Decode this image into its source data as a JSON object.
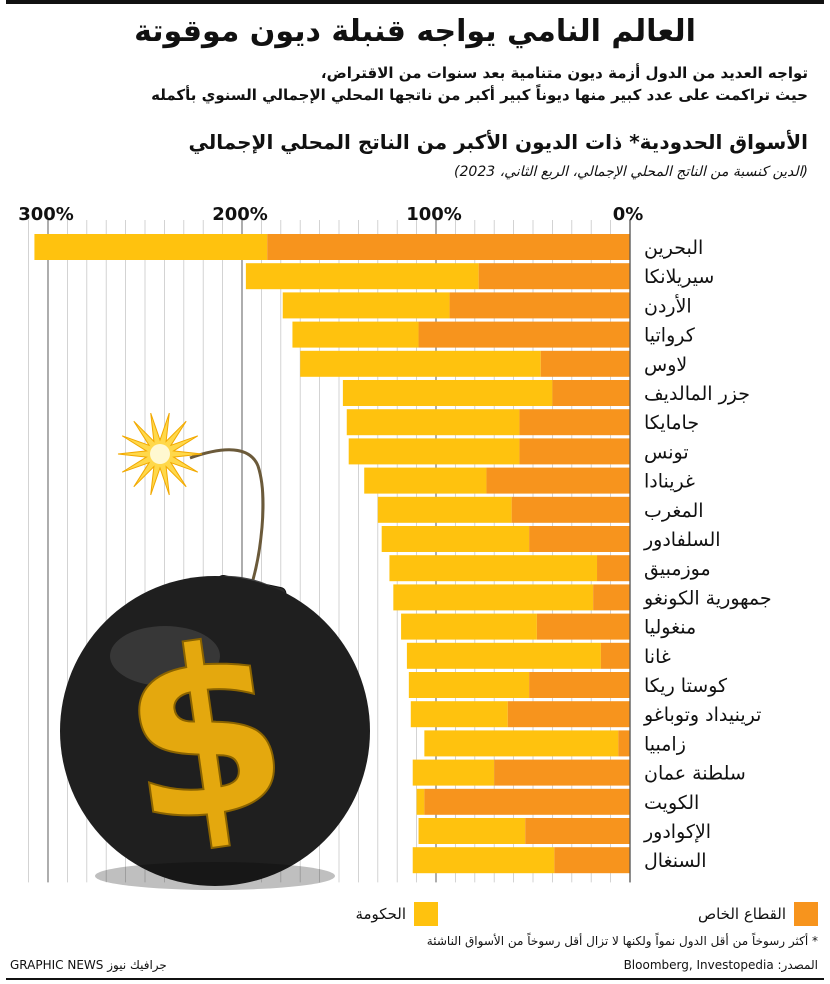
{
  "header": {
    "title": "العالم النامي يواجه قنبلة ديون موقوتة",
    "subtitle_line1": "تواجه العديد من الدول أزمة ديون متنامية بعد سنوات من الاقتراض،",
    "subtitle_line2": "حيث تراكمت على عدد كبير منها ديوناً كبير أكبر من ناتجها المحلي الإجمالي السنوي بأكمله"
  },
  "chart_heading": "الأسواق الحدودية* ذات الديون الأكبر من الناتج المحلي الإجمالي",
  "chart_note": "(الدين كنسبة من الناتج المحلي الإجمالي، الربع الثاني، 2023)",
  "colors": {
    "government": "#FFC20E",
    "private": "#F7941D",
    "bomb_body": "#1f1f1f",
    "dollar": "#E4A80E",
    "spark": "#FFD84A"
  },
  "chart_data": {
    "type": "bar",
    "orientation": "horizontal",
    "stacked": true,
    "axis_direction": "right-to-left",
    "xlim": [
      0,
      310
    ],
    "xticks": [
      0,
      100,
      200,
      300
    ],
    "xtick_labels": [
      "0%",
      "100%",
      "200%",
      "300%"
    ],
    "grid": true,
    "categories": [
      "البحرين",
      "سيريلانكا",
      "الأردن",
      "كرواتيا",
      "لاوس",
      "جزر المالديف",
      "جامايكا",
      "تونس",
      "غرينادا",
      "المغرب",
      "السلفادور",
      "موزمبيق",
      "جمهورية الكونغو",
      "منغوليا",
      "غانا",
      "كوستا ريكا",
      "ترينيداد وتوباغو",
      "زامبيا",
      "سلطنة عمان",
      "الكويت",
      "الإكوادور",
      "السنغال"
    ],
    "series": [
      {
        "name": "القطاع الخاص",
        "color": "#F7941D",
        "values": [
          187,
          78,
          93,
          109,
          46,
          40,
          57,
          57,
          74,
          61,
          52,
          17,
          19,
          48,
          15,
          52,
          63,
          6,
          70,
          106,
          54,
          39
        ]
      },
      {
        "name": "الحكومة",
        "color": "#FFC20E",
        "values": [
          120,
          120,
          86,
          65,
          124,
          108,
          89,
          88,
          63,
          69,
          76,
          107,
          103,
          70,
          100,
          62,
          50,
          100,
          42,
          4,
          55,
          73
        ]
      }
    ],
    "legend_position": "bottom"
  },
  "legend": {
    "private": "القطاع الخاص",
    "government": "الحكومة"
  },
  "footnote": "* أكثر رسوخاً من أقل الدول نمواً ولكنها لا تزال أقل رسوخاً من الأسواق الناشئة",
  "source": "المصدر: Bloomberg, Investopedia",
  "credit": "GRAPHIC NEWS جرافيك نيوز",
  "illustration": {
    "icon": "bomb-dollar-icon",
    "dollar_sign": "$"
  }
}
